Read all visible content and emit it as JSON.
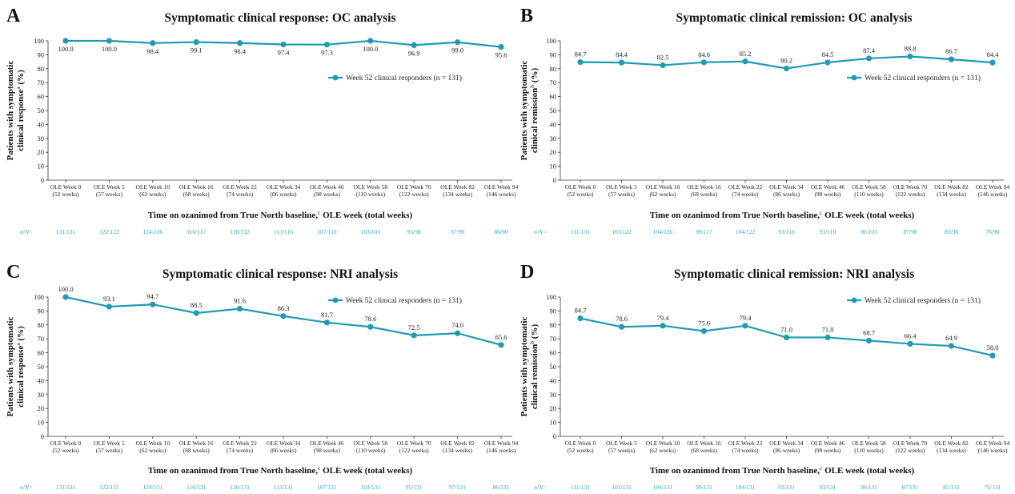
{
  "colors": {
    "series": "#1f9bb3",
    "nn_text": "#2aa6c2"
  },
  "chart_data": [
    {
      "type": "line",
      "panel": "A",
      "title": "Symptomatic clinical response: OC analysis",
      "ylabel_line1": "Patients with symptomatic",
      "ylabel_line2_main": "clinical response",
      "ylabel_line2_sup": "a",
      "ylabel_line2_unit": " (%)",
      "xlabel_main": "Time on ozanimod from True North baseline,",
      "xlabel_sup": "c",
      "xlabel_tail": " OLE week (total weeks)",
      "ylim": [
        0,
        100
      ],
      "yticks": [
        "0",
        "10",
        "20",
        "30",
        "40",
        "50",
        "60",
        "70",
        "80",
        "90",
        "100"
      ],
      "categories": [
        "OLE Week 0",
        "OLE Week 5",
        "OLE Week 10",
        "OLE Week 16",
        "OLE Week 22",
        "OLE Week 34",
        "OLE Week 46",
        "OLE Week 58",
        "OLE Week 70",
        "OLE Week 82",
        "OLE Week 94"
      ],
      "categories_sub": [
        "(52 weeks)",
        "(57 weeks)",
        "(62 weeks)",
        "(68 weeks)",
        "(74 weeks)",
        "(86 weeks)",
        "(98 weeks)",
        "(110 weeks)",
        "(122 weeks)",
        "(134 weeks)",
        "(146 weeks)"
      ],
      "series": [
        {
          "name": "Week 52 clinical responders (n = 131)",
          "values": [
            100.0,
            100.0,
            98.4,
            99.1,
            98.4,
            97.4,
            97.3,
            100.0,
            96.9,
            99.0,
            95.6
          ],
          "labels": [
            "100.0",
            "100.0",
            "98.4",
            "99.1",
            "98.4",
            "97.4",
            "97.3",
            "100.0",
            "96.9",
            "99.0",
            "95.6"
          ]
        }
      ],
      "label_position": "below",
      "legend": "right",
      "grid": false,
      "nn_label": "n/N=",
      "nn": [
        "131/131",
        "122/122",
        "124/126",
        "116/117",
        "120/122",
        "113/116",
        "107/110",
        "103/103",
        "95/98",
        "97/98",
        "86/90"
      ]
    },
    {
      "type": "line",
      "panel": "B",
      "title": "Symptomatic clinical remission: OC analysis",
      "ylabel_line1": "Patients with symptomatic",
      "ylabel_line2_main": "clinical remission",
      "ylabel_line2_sup": "b",
      "ylabel_line2_unit": " (%)",
      "xlabel_main": "Time on ozanimod from True North baseline,",
      "xlabel_sup": "c",
      "xlabel_tail": " OLE week (total weeks)",
      "ylim": [
        0,
        100
      ],
      "yticks": [
        "0",
        "10",
        "20",
        "30",
        "40",
        "50",
        "60",
        "70",
        "80",
        "90",
        "100"
      ],
      "categories": [
        "OLE Week 0",
        "OLE Week 5",
        "OLE Week 10",
        "OLE Week 16",
        "OLE Week 22",
        "OLE Week 34",
        "OLE Week 46",
        "OLE Week 58",
        "OLE Week 70",
        "OLE Week 82",
        "OLE Week 94"
      ],
      "categories_sub": [
        "(52 weeks)",
        "(57 weeks)",
        "(62 weeks)",
        "(68 weeks)",
        "(74 weeks)",
        "(86 weeks)",
        "(98 weeks)",
        "(110 weeks)",
        "(122 weeks)",
        "(134 weeks)",
        "(146 weeks)"
      ],
      "series": [
        {
          "name": "Week 52 clinical responders (n = 131)",
          "values": [
            84.7,
            84.4,
            82.5,
            84.6,
            85.2,
            80.2,
            84.5,
            87.4,
            88.8,
            86.7,
            84.4
          ],
          "labels": [
            "84.7",
            "84.4",
            "82.5",
            "84.6",
            "85.2",
            "80.2",
            "84.5",
            "87.4",
            "88.8",
            "86.7",
            "84.4"
          ]
        }
      ],
      "label_position": "above",
      "legend": "right",
      "grid": false,
      "nn_label": "n/N=",
      "nn": [
        "111/131",
        "103/122",
        "104/126",
        "99/117",
        "104/122",
        "93/116",
        "93/110",
        "90/103",
        "87/98",
        "85/98",
        "76/90"
      ]
    },
    {
      "type": "line",
      "panel": "C",
      "title": "Symptomatic clinical response: NRI analysis",
      "ylabel_line1": "Patients with symptomatic",
      "ylabel_line2_main": "clinical response",
      "ylabel_line2_sup": "a",
      "ylabel_line2_unit": " (%)",
      "xlabel_main": "Time on ozanimod from True North baseline,",
      "xlabel_sup": "c",
      "xlabel_tail": " OLE week (total weeks)",
      "ylim": [
        0,
        100
      ],
      "yticks": [
        "0",
        "10",
        "20",
        "30",
        "40",
        "50",
        "60",
        "70",
        "80",
        "90",
        "100"
      ],
      "categories": [
        "OLE Week 0",
        "OLE Week 5",
        "OLE Week 10",
        "OLE Week 16",
        "OLE Week 22",
        "OLE Week 34",
        "OLE Week 46",
        "OLE Week 58",
        "OLE Week 70",
        "OLE Week 82",
        "OLE Week 94"
      ],
      "categories_sub": [
        "(52 weeks)",
        "(57 weeks)",
        "(62 weeks)",
        "(68 weeks)",
        "(74 weeks)",
        "(86 weeks)",
        "(98 weeks)",
        "(110 weeks)",
        "(122 weeks)",
        "(134 weeks)",
        "(146 weeks)"
      ],
      "series": [
        {
          "name": "Week 52 clinical responders (n = 131)",
          "values": [
            100.0,
            93.1,
            94.7,
            88.5,
            91.6,
            86.3,
            81.7,
            78.6,
            72.5,
            74.0,
            65.6
          ],
          "labels": [
            "100.0",
            "93.1",
            "94.7",
            "88.5",
            "91.6",
            "86.3",
            "81.7",
            "78.6",
            "72.5",
            "74.0",
            "65.6"
          ]
        }
      ],
      "label_position": "above",
      "legend": "top-right",
      "grid": false,
      "nn_label": "n/N=",
      "nn": [
        "131/131",
        "122/131",
        "124/131",
        "116/131",
        "120/131",
        "113/131",
        "107/131",
        "103/131",
        "95/131",
        "97/131",
        "86/131"
      ]
    },
    {
      "type": "line",
      "panel": "D",
      "title": "Symptomatic clinical remission: NRI analysis",
      "ylabel_line1": "Patients with symptomatic",
      "ylabel_line2_main": "clinical remission",
      "ylabel_line2_sup": "b",
      "ylabel_line2_unit": " (%)",
      "xlabel_main": "Time on ozanimod from True North baseline,",
      "xlabel_sup": "c",
      "xlabel_tail": " OLE week (total weeks)",
      "ylim": [
        0,
        100
      ],
      "yticks": [
        "0",
        "10",
        "20",
        "30",
        "40",
        "50",
        "60",
        "70",
        "80",
        "90",
        "100"
      ],
      "categories": [
        "OLE Week 0",
        "OLE Week 5",
        "OLE Week 10",
        "OLE Week 16",
        "OLE Week 22",
        "OLE Week 34",
        "OLE Week 46",
        "OLE Week 58",
        "OLE Week 70",
        "OLE Week 82",
        "OLE Week 94"
      ],
      "categories_sub": [
        "(52 weeks)",
        "(57 weeks)",
        "(62 weeks)",
        "(68 weeks)",
        "(74 weeks)",
        "(86 weeks)",
        "(98 weeks)",
        "(110 weeks)",
        "(122 weeks)",
        "(134 weeks)",
        "(146 weeks)"
      ],
      "series": [
        {
          "name": "Week 52 clinical responders (n = 131)",
          "values": [
            84.7,
            78.6,
            79.4,
            75.6,
            79.4,
            71.0,
            71.0,
            68.7,
            66.4,
            64.9,
            58.0
          ],
          "labels": [
            "84.7",
            "78.6",
            "79.4",
            "75.6",
            "79.4",
            "71.0",
            "71.0",
            "68.7",
            "66.4",
            "64.9",
            "58.0"
          ]
        }
      ],
      "label_position": "above",
      "legend": "top-right",
      "grid": false,
      "nn_label": "n/N=",
      "nn": [
        "111/131",
        "103/131",
        "104/131",
        "99/131",
        "104/131",
        "93/131",
        "93/131",
        "90/131",
        "87/131",
        "85/131",
        "76/131"
      ]
    }
  ]
}
